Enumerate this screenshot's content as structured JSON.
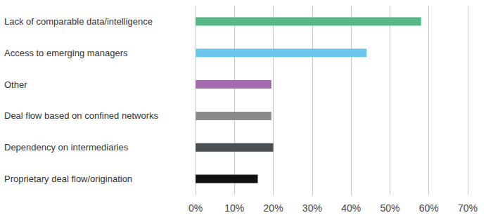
{
  "chart_data": {
    "type": "bar",
    "orientation": "horizontal",
    "categories": [
      "Lack of comparable data/intelligence",
      "Access to emerging managers",
      "Other",
      "Deal flow based on confined networks",
      "Dependency on intermediaries",
      "Proprietary deal flow/origination"
    ],
    "values": [
      58,
      44,
      19.5,
      19.5,
      20,
      16
    ],
    "colors": [
      "#55b884",
      "#6ec6ea",
      "#a36cae",
      "#8a8a8a",
      "#4a4f54",
      "#111111"
    ],
    "xlim": [
      0,
      70
    ],
    "xticks": [
      {
        "value": 0,
        "label": "0%"
      },
      {
        "value": 10,
        "label": "10%"
      },
      {
        "value": 20,
        "label": "20%"
      },
      {
        "value": 30,
        "label": "30%"
      },
      {
        "value": 40,
        "label": "40%"
      },
      {
        "value": 50,
        "label": "50%"
      },
      {
        "value": 60,
        "label": "60%"
      },
      {
        "value": 70,
        "label": "70%"
      }
    ],
    "grid": true
  }
}
